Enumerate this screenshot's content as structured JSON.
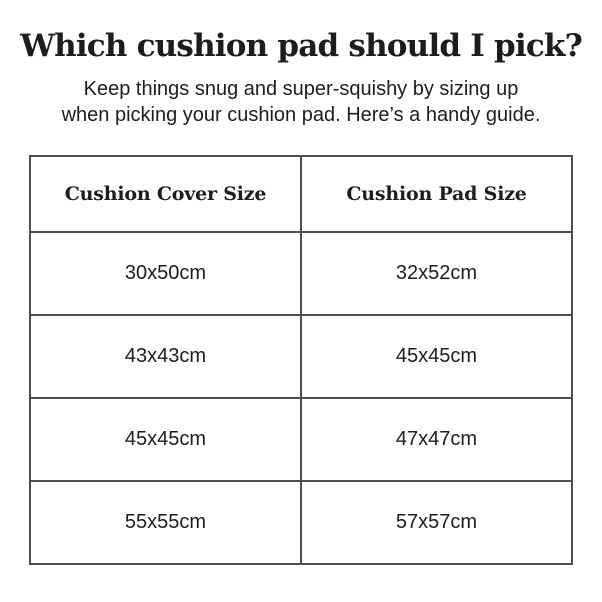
{
  "page": {
    "title": "Which cushion pad should I pick?",
    "subtitle_line1": "Keep things snug and super-squishy by sizing up",
    "subtitle_line2": "when picking your cushion pad. Here’s a handy guide."
  },
  "table": {
    "headers": [
      "Cushion Cover Size",
      "Cushion Pad Size"
    ],
    "rows": [
      {
        "cover": "30x50cm",
        "pad": "32x52cm"
      },
      {
        "cover": "43x43cm",
        "pad": "45x45cm"
      },
      {
        "cover": "45x45cm",
        "pad": "47x47cm"
      },
      {
        "cover": "55x55cm",
        "pad": "57x57cm"
      }
    ]
  },
  "colors": {
    "text": "#1d1d1b",
    "border": "#4d4d4d",
    "background": "#ffffff"
  }
}
